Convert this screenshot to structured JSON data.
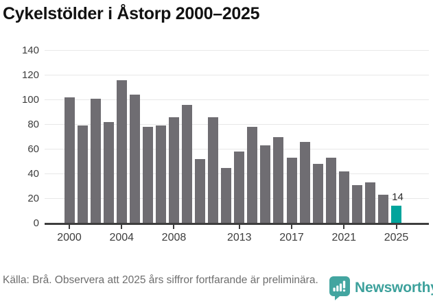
{
  "title": "Cykelstölder i Åstorp 2000–2025",
  "chart_data": {
    "type": "bar",
    "x": [
      2000,
      2001,
      2002,
      2003,
      2004,
      2005,
      2006,
      2007,
      2008,
      2009,
      2010,
      2011,
      2012,
      2013,
      2014,
      2015,
      2016,
      2017,
      2018,
      2019,
      2020,
      2021,
      2022,
      2023,
      2024,
      2025
    ],
    "values": [
      102,
      79,
      101,
      82,
      116,
      104,
      78,
      79,
      86,
      96,
      52,
      86,
      45,
      58,
      78,
      63,
      70,
      53,
      66,
      48,
      53,
      42,
      31,
      33,
      23,
      14
    ],
    "title": "Cykelstölder i Åstorp 2000–2025",
    "xlabel": "",
    "ylabel": "",
    "ylim": [
      0,
      140
    ],
    "y_ticks": [
      0,
      20,
      40,
      60,
      80,
      100,
      120,
      140
    ],
    "x_tick_labels": [
      "2000",
      "2004",
      "2008",
      "2013",
      "2017",
      "2021",
      "2025"
    ],
    "x_tick_years": [
      2000,
      2004,
      2008,
      2013,
      2017,
      2021,
      2025
    ],
    "grid": true,
    "legend": "none",
    "bar_color": "#6f6d72",
    "highlight_color": "#00a49c",
    "highlight_year": 2025,
    "annotation": {
      "year": 2025,
      "text": "14"
    }
  },
  "footer": {
    "source_text": "Källa: Brå. Observera att 2025 års siffror fortfarande är preliminära.",
    "logo_text": "Newsworthy"
  },
  "colors": {
    "axis": "#3d3d3d",
    "gridline": "#e8e8e8",
    "title_text": "#121212",
    "footer_text": "#6d6d6d",
    "brand_teal": "#3da19c"
  }
}
